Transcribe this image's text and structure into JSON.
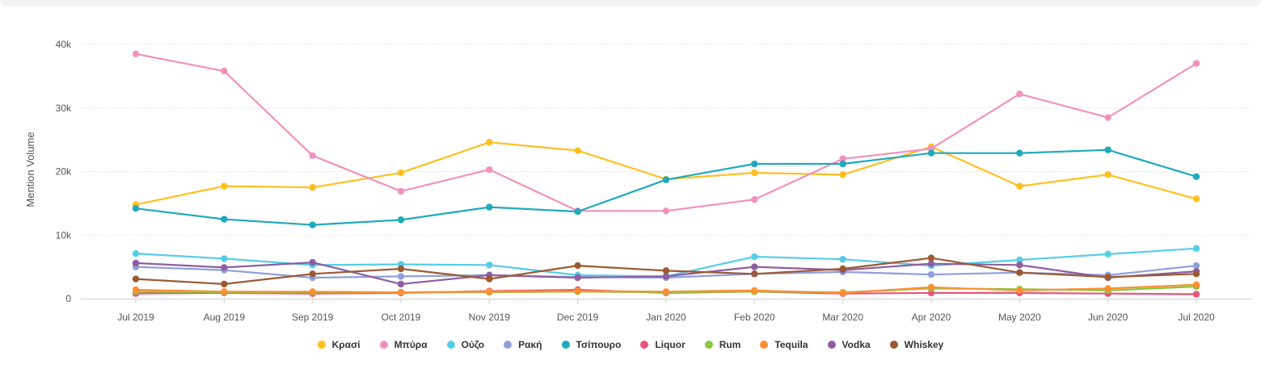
{
  "chart_data": {
    "type": "line",
    "title": "",
    "xlabel": "",
    "ylabel": "Mention Volume",
    "ylim": [
      0,
      40000
    ],
    "y_ticks": [
      {
        "value": 0,
        "label": "0"
      },
      {
        "value": 10000,
        "label": "10k"
      },
      {
        "value": 20000,
        "label": "20k"
      },
      {
        "value": 30000,
        "label": "30k"
      },
      {
        "value": 40000,
        "label": "40k"
      }
    ],
    "grid": true,
    "legend_position": "bottom",
    "categories": [
      "Jul 2019",
      "Aug 2019",
      "Sep 2019",
      "Oct 2019",
      "Nov 2019",
      "Dec 2019",
      "Jan 2020",
      "Feb 2020",
      "Mar 2020",
      "Apr 2020",
      "May 2020",
      "Jun 2020",
      "Jul 2020"
    ],
    "series": [
      {
        "name": "Κρασί",
        "color": "#FFBF1F",
        "values": [
          14800,
          17700,
          17500,
          19800,
          24600,
          23300,
          18800,
          19800,
          19500,
          23900,
          17700,
          19500,
          15700
        ]
      },
      {
        "name": "Μπύρα",
        "color": "#F291BE",
        "values": [
          38500,
          35800,
          22500,
          16900,
          20300,
          13800,
          13800,
          15600,
          22000,
          23600,
          32200,
          28500,
          37000
        ]
      },
      {
        "name": "Ούζο",
        "color": "#55CDE6",
        "values": [
          7100,
          6300,
          5300,
          5400,
          5300,
          3700,
          3500,
          6600,
          6200,
          5200,
          6100,
          7000,
          7900
        ]
      },
      {
        "name": "Ρακή",
        "color": "#8F9FDE",
        "values": [
          5000,
          4500,
          3300,
          3500,
          3700,
          3400,
          3300,
          3900,
          4200,
          3800,
          4100,
          3700,
          5200
        ]
      },
      {
        "name": "Τσίπουρο",
        "color": "#1FA9BC",
        "values": [
          14200,
          12500,
          11600,
          12400,
          14400,
          13700,
          18700,
          21200,
          21200,
          22900,
          22900,
          23400,
          19200
        ]
      },
      {
        "name": "Liquor",
        "color": "#E8547A",
        "values": [
          800,
          900,
          800,
          900,
          1200,
          1400,
          900,
          1100,
          800,
          900,
          900,
          800,
          700
        ]
      },
      {
        "name": "Rum",
        "color": "#8CC63F",
        "values": [
          1100,
          1000,
          1000,
          1000,
          1000,
          1100,
          1000,
          1100,
          1000,
          1600,
          1500,
          1300,
          1900
        ]
      },
      {
        "name": "Tequila",
        "color": "#FF8F33",
        "values": [
          1400,
          1100,
          1100,
          1000,
          1100,
          1200,
          1100,
          1300,
          900,
          1800,
          1300,
          1600,
          2200
        ]
      },
      {
        "name": "Vodka",
        "color": "#8E5EA2",
        "values": [
          5600,
          4900,
          5700,
          2300,
          3700,
          3300,
          3500,
          5000,
          4500,
          5500,
          5300,
          3300,
          4300
        ]
      },
      {
        "name": "Whiskey",
        "color": "#9B5A34",
        "values": [
          3100,
          2300,
          3900,
          4700,
          3100,
          5200,
          4400,
          3900,
          4700,
          6400,
          4100,
          3400,
          3900
        ]
      }
    ]
  }
}
